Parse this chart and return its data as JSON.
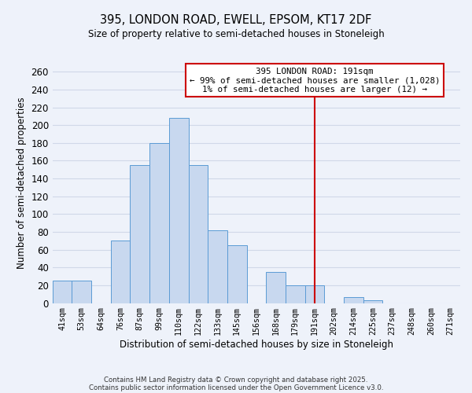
{
  "title": "395, LONDON ROAD, EWELL, EPSOM, KT17 2DF",
  "subtitle": "Size of property relative to semi-detached houses in Stoneleigh",
  "xlabel": "Distribution of semi-detached houses by size in Stoneleigh",
  "ylabel": "Number of semi-detached properties",
  "bin_labels": [
    "41sqm",
    "53sqm",
    "64sqm",
    "76sqm",
    "87sqm",
    "99sqm",
    "110sqm",
    "122sqm",
    "133sqm",
    "145sqm",
    "156sqm",
    "168sqm",
    "179sqm",
    "191sqm",
    "202sqm",
    "214sqm",
    "225sqm",
    "237sqm",
    "248sqm",
    "260sqm",
    "271sqm"
  ],
  "bar_heights": [
    25,
    25,
    0,
    70,
    155,
    180,
    208,
    155,
    82,
    65,
    0,
    35,
    20,
    20,
    0,
    7,
    3,
    0,
    0,
    0,
    0
  ],
  "bar_color": "#c8d8ef",
  "bar_edge_color": "#5b9bd5",
  "vline_index": 13,
  "vline_color": "#cc0000",
  "annotation_title": "395 LONDON ROAD: 191sqm",
  "annotation_line1": "← 99% of semi-detached houses are smaller (1,028)",
  "annotation_line2": "1% of semi-detached houses are larger (12) →",
  "annotation_box_color": "#ffffff",
  "annotation_box_edge": "#cc0000",
  "ylim": [
    0,
    270
  ],
  "yticks": [
    0,
    20,
    40,
    60,
    80,
    100,
    120,
    140,
    160,
    180,
    200,
    220,
    240,
    260
  ],
  "footer1": "Contains HM Land Registry data © Crown copyright and database right 2025.",
  "footer2": "Contains public sector information licensed under the Open Government Licence v3.0.",
  "bg_color": "#eef2fa",
  "grid_color": "#d0d8e8"
}
